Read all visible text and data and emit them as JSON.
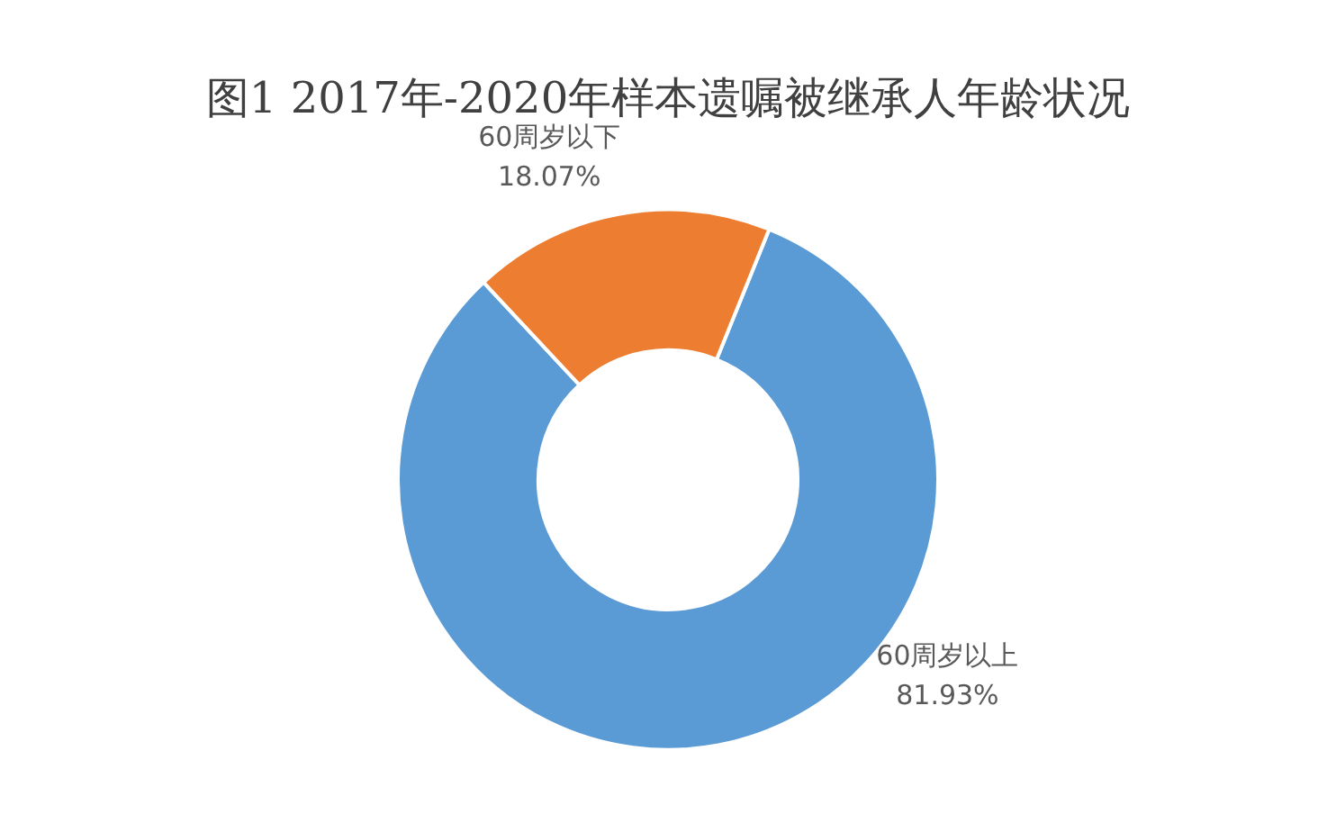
{
  "chart_data": {
    "type": "donut",
    "title": "图1 2017年-2020年样本遗嘱被继承人年龄状况",
    "categories": [
      "60周岁以上",
      "60周岁以下"
    ],
    "values": [
      81.93,
      18.07
    ],
    "colors": [
      "#5b9bd5",
      "#ed7d31"
    ],
    "value_labels": [
      "81.93%",
      "18.07%"
    ],
    "legend": false
  }
}
